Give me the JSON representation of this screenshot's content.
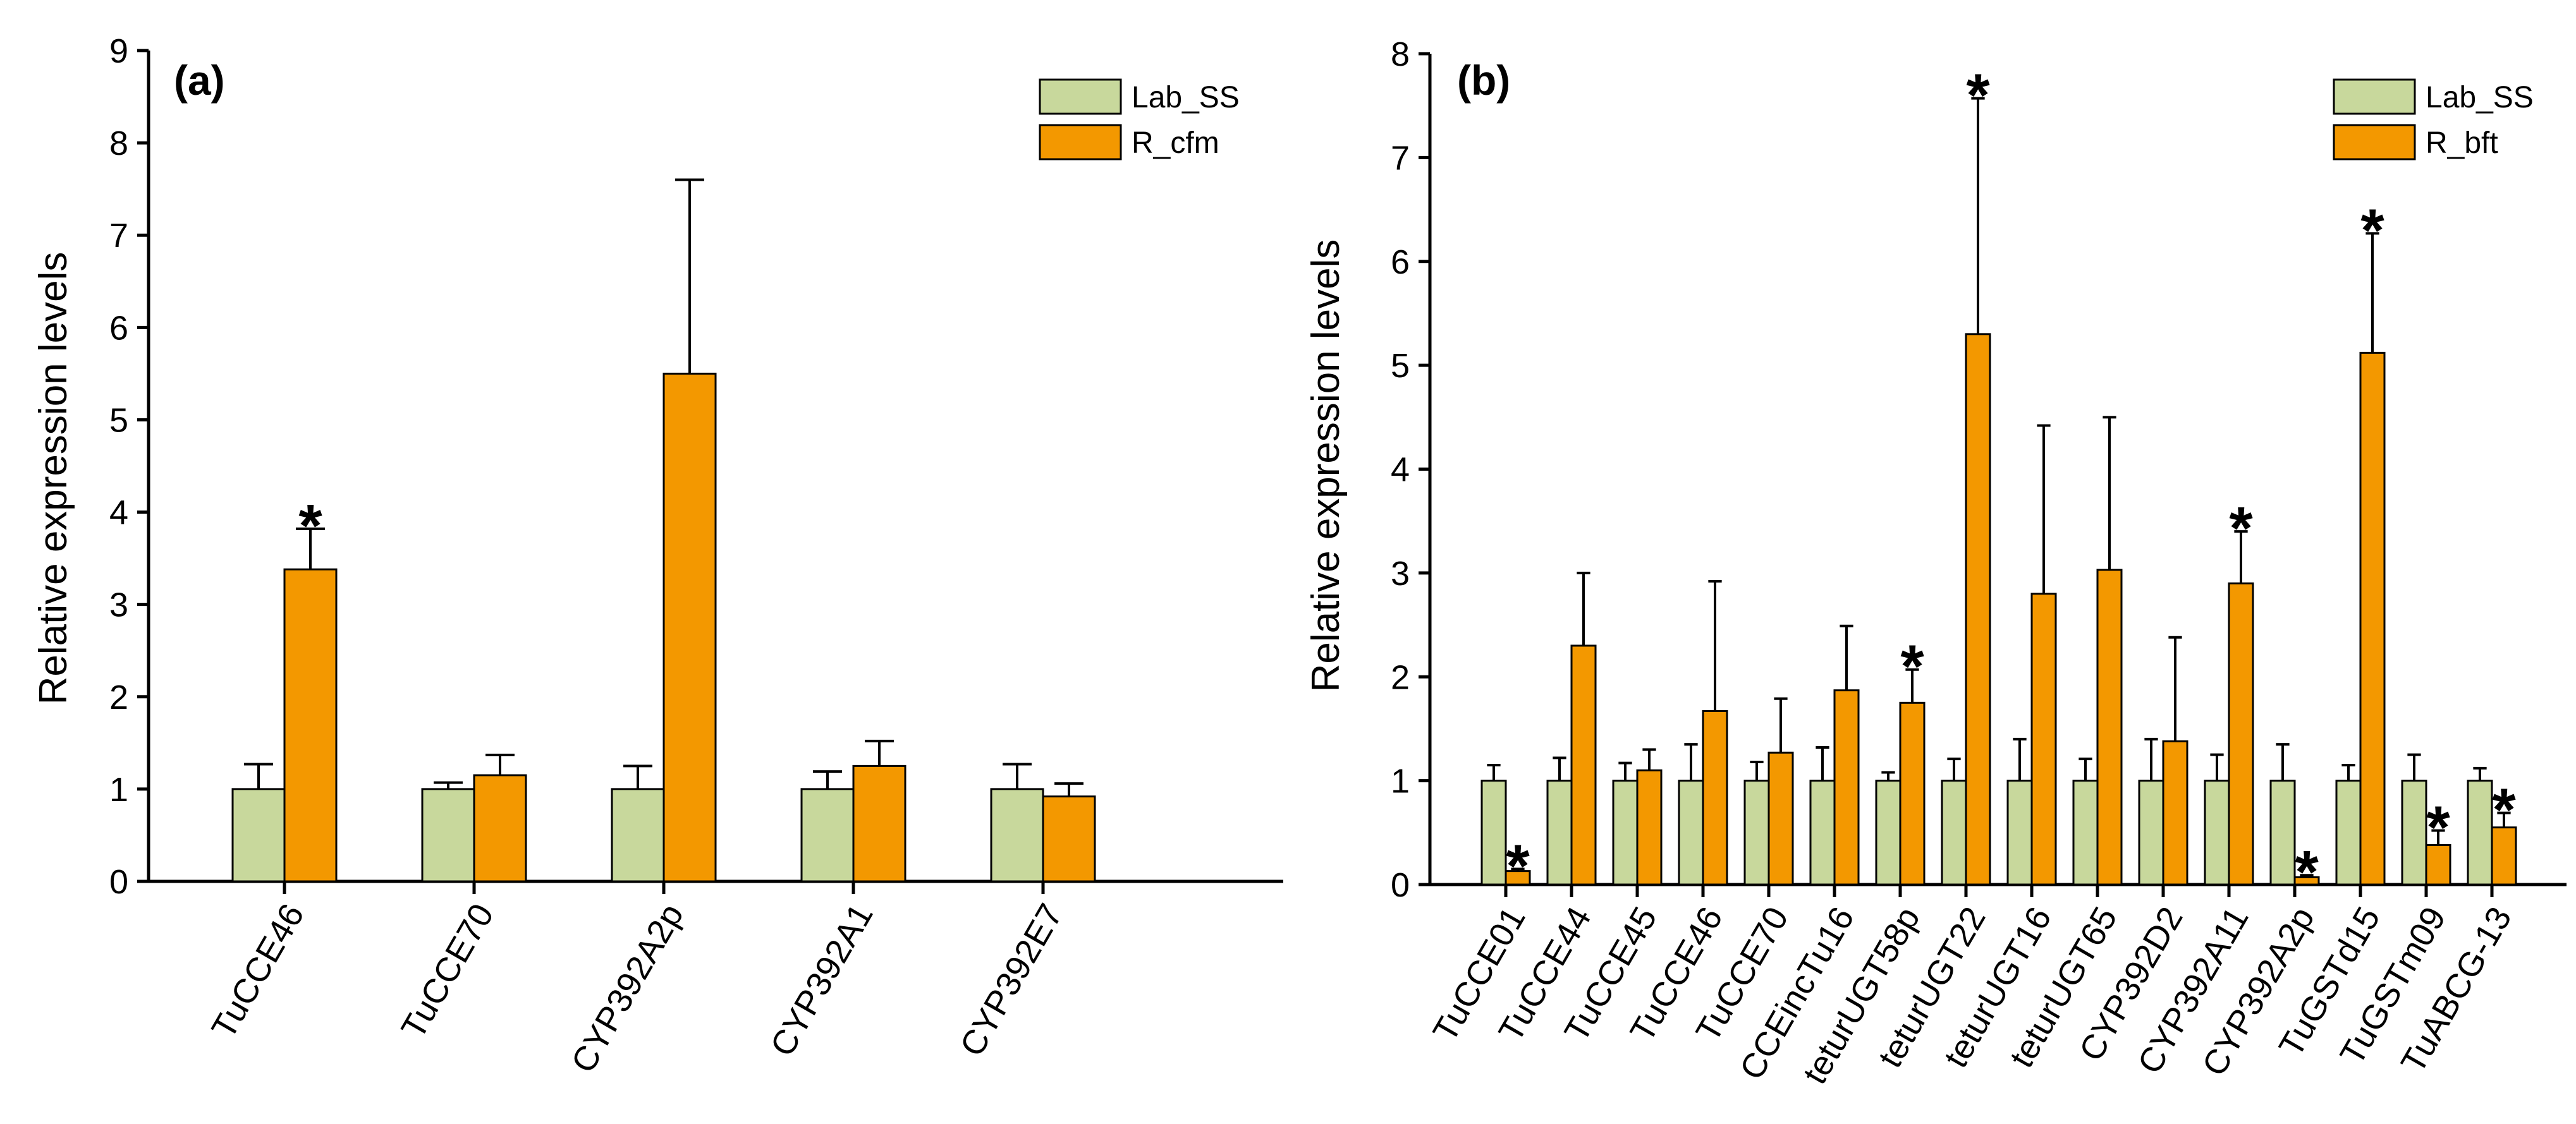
{
  "colors": {
    "lab": "#c8d89c",
    "resistant": "#f39800",
    "axis": "#000000"
  },
  "chart_data": [
    {
      "type": "bar",
      "panel_label": "(a)",
      "ylabel": "Relative expression levels",
      "ylim": [
        0,
        9
      ],
      "yticks": [
        "0",
        "1",
        "2",
        "3",
        "4",
        "5",
        "6",
        "7",
        "8",
        "9"
      ],
      "categories": [
        "TuCCE46",
        "TuCCE70",
        "CYP392A2p",
        "CYP392A1",
        "CYP392E7"
      ],
      "series": [
        {
          "name": "Lab_SS",
          "values": [
            1.0,
            1.0,
            1.0,
            1.0,
            1.0
          ],
          "errors": [
            0.27,
            0.07,
            0.25,
            0.19,
            0.27
          ]
        },
        {
          "name": "R_cfm",
          "values": [
            3.38,
            1.15,
            5.5,
            1.25,
            0.92
          ],
          "errors": [
            0.44,
            0.22,
            2.1,
            0.27,
            0.14
          ]
        }
      ],
      "significance": [
        "*",
        "",
        "",
        "",
        ""
      ],
      "legend_position": "top-right"
    },
    {
      "type": "bar",
      "panel_label": "(b)",
      "ylabel": "Relative expression levels",
      "ylim": [
        0,
        8
      ],
      "yticks": [
        "0",
        "1",
        "2",
        "3",
        "4",
        "5",
        "6",
        "7",
        "8"
      ],
      "categories": [
        "TuCCE01",
        "TuCCE44",
        "TuCCE45",
        "TuCCE46",
        "TuCCE70",
        "CCEincTu16",
        "teturUGT58p",
        "teturUGT22",
        "teturUGT16",
        "teturUGT65",
        "CYP392D2",
        "CYP392A11",
        "CYP392A2p",
        "TuGSTd15",
        "TuGSTm09",
        "TuABCG-13"
      ],
      "series": [
        {
          "name": "Lab_SS",
          "values": [
            1,
            1,
            1,
            1,
            1,
            1,
            1,
            1,
            1,
            1,
            1,
            1,
            1,
            1,
            1,
            1
          ],
          "errors": [
            0.15,
            0.22,
            0.17,
            0.35,
            0.18,
            0.32,
            0.08,
            0.21,
            0.4,
            0.21,
            0.4,
            0.25,
            0.35,
            0.15,
            0.25,
            0.12
          ]
        },
        {
          "name": "R_bft",
          "values": [
            0.13,
            2.3,
            1.1,
            1.67,
            1.27,
            1.87,
            1.75,
            5.3,
            2.8,
            3.03,
            1.38,
            2.9,
            0.07,
            5.12,
            0.38,
            0.55
          ],
          "errors": [
            0.02,
            0.7,
            0.2,
            1.25,
            0.52,
            0.62,
            0.32,
            2.27,
            1.62,
            1.47,
            1.0,
            0.5,
            0.02,
            1.15,
            0.14,
            0.14
          ]
        }
      ],
      "significance": [
        "*",
        "",
        "",
        "",
        "",
        "",
        "*",
        "*",
        "",
        "",
        "",
        "*",
        "*",
        "*",
        "*",
        "*"
      ],
      "legend_position": "top-right"
    }
  ]
}
